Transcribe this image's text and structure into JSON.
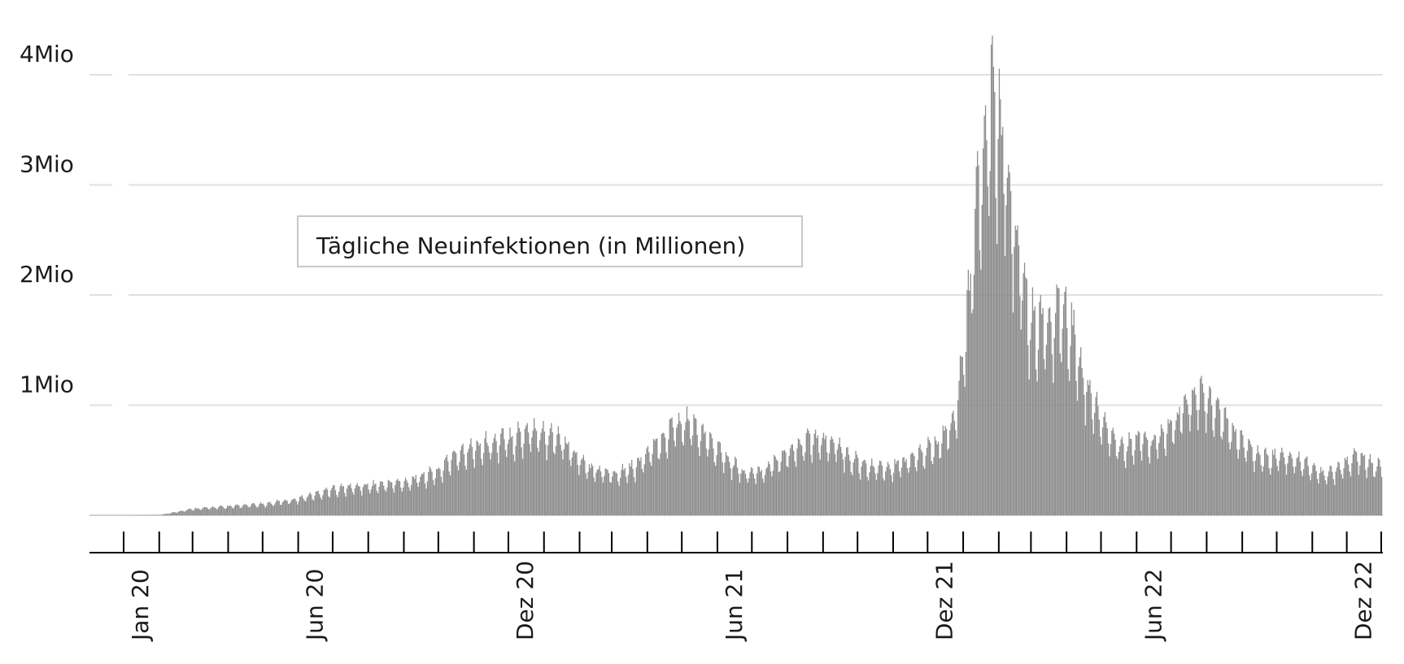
{
  "chart_data": {
    "type": "bar",
    "legend_label": "Tägliche Neuinfektionen (in Millionen)",
    "legend_position": "upper-left",
    "grid": true,
    "ylim": [
      0,
      4000000
    ],
    "xlim": [
      "2020-01-01",
      "2022-12-31"
    ],
    "yticks": [
      {
        "value": 1000000,
        "label": "1Mio"
      },
      {
        "value": 2000000,
        "label": "2Mio"
      },
      {
        "value": 3000000,
        "label": "3Mio"
      },
      {
        "value": 4000000,
        "label": "4Mio"
      }
    ],
    "xticks": [
      {
        "date": "2020-01-01",
        "label": "Jan 20"
      },
      {
        "date": "2020-06-01",
        "label": "Jun 20"
      },
      {
        "date": "2020-12-01",
        "label": "Dez 20"
      },
      {
        "date": "2021-06-01",
        "label": "Jun 21"
      },
      {
        "date": "2021-12-01",
        "label": "Dez 21"
      },
      {
        "date": "2022-06-01",
        "label": "Jun 22"
      },
      {
        "date": "2022-12-01",
        "label": "Dez 22"
      }
    ],
    "series": [
      {
        "bar_color": "#8c8c8c",
        "points": [
          [
            "2020-01-01",
            0
          ],
          [
            "2020-02-01",
            2000
          ],
          [
            "2020-03-01",
            60000
          ],
          [
            "2020-04-01",
            80000
          ],
          [
            "2020-05-01",
            100000
          ],
          [
            "2020-06-01",
            150000
          ],
          [
            "2020-07-01",
            240000
          ],
          [
            "2020-08-01",
            270000
          ],
          [
            "2020-09-01",
            300000
          ],
          [
            "2020-10-01",
            400000
          ],
          [
            "2020-10-15",
            560000
          ],
          [
            "2020-11-01",
            620000
          ],
          [
            "2020-11-15",
            660000
          ],
          [
            "2020-12-01",
            700000
          ],
          [
            "2020-12-20",
            780000
          ],
          [
            "2021-01-10",
            720000
          ],
          [
            "2021-01-25",
            580000
          ],
          [
            "2021-02-10",
            420000
          ],
          [
            "2021-03-01",
            380000
          ],
          [
            "2021-03-20",
            440000
          ],
          [
            "2021-04-10",
            650000
          ],
          [
            "2021-04-25",
            840000
          ],
          [
            "2021-05-05",
            860000
          ],
          [
            "2021-05-20",
            720000
          ],
          [
            "2021-06-10",
            500000
          ],
          [
            "2021-06-25",
            380000
          ],
          [
            "2021-07-10",
            400000
          ],
          [
            "2021-07-25",
            520000
          ],
          [
            "2021-08-10",
            640000
          ],
          [
            "2021-08-25",
            700000
          ],
          [
            "2021-09-10",
            640000
          ],
          [
            "2021-09-25",
            520000
          ],
          [
            "2021-10-10",
            440000
          ],
          [
            "2021-10-25",
            420000
          ],
          [
            "2021-11-10",
            480000
          ],
          [
            "2021-11-25",
            580000
          ],
          [
            "2021-12-10",
            650000
          ],
          [
            "2021-12-25",
            900000
          ],
          [
            "2022-01-05",
            1900000
          ],
          [
            "2022-01-12",
            2800000
          ],
          [
            "2022-01-20",
            3400000
          ],
          [
            "2022-01-25",
            3800000
          ],
          [
            "2022-02-01",
            3550000
          ],
          [
            "2022-02-10",
            3000000
          ],
          [
            "2022-02-20",
            2200000
          ],
          [
            "2022-03-01",
            1750000
          ],
          [
            "2022-03-15",
            1700000
          ],
          [
            "2022-03-25",
            1900000
          ],
          [
            "2022-04-05",
            1700000
          ],
          [
            "2022-04-20",
            1100000
          ],
          [
            "2022-05-05",
            780000
          ],
          [
            "2022-05-20",
            600000
          ],
          [
            "2022-06-01",
            700000
          ],
          [
            "2022-06-15",
            650000
          ],
          [
            "2022-07-01",
            800000
          ],
          [
            "2022-07-15",
            1050000
          ],
          [
            "2022-07-25",
            1120000
          ],
          [
            "2022-08-10",
            950000
          ],
          [
            "2022-08-25",
            750000
          ],
          [
            "2022-09-10",
            560000
          ],
          [
            "2022-09-25",
            520000
          ],
          [
            "2022-10-10",
            540000
          ],
          [
            "2022-10-25",
            480000
          ],
          [
            "2022-11-10",
            380000
          ],
          [
            "2022-11-25",
            420000
          ],
          [
            "2022-12-10",
            560000
          ],
          [
            "2022-12-25",
            450000
          ]
        ]
      }
    ]
  }
}
